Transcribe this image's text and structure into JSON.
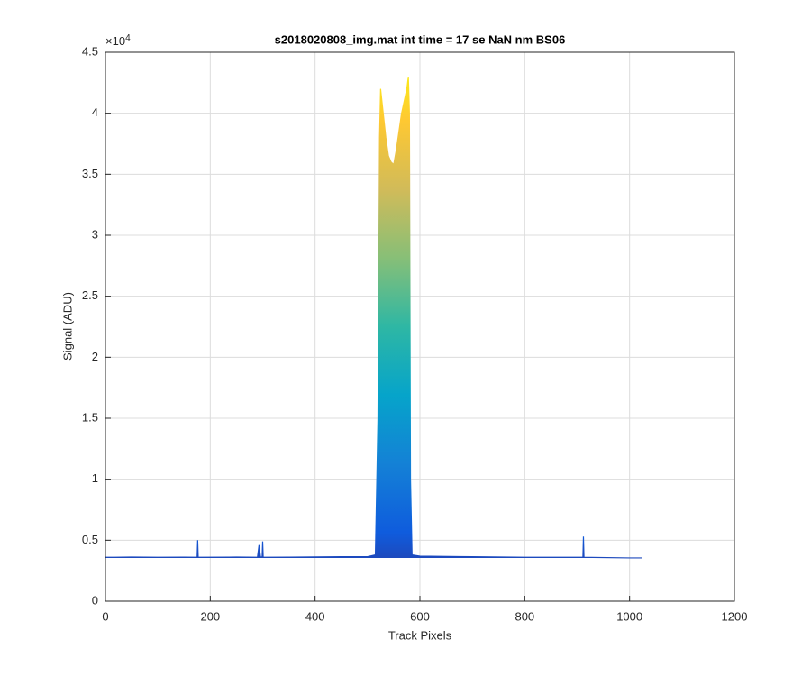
{
  "chart_data": {
    "type": "line",
    "title": "s2018020808_img.mat int time = 17 se  NaN nm BS06",
    "x_label": "Track Pixels",
    "y_label": "Signal (ADU)",
    "y_multiplier": {
      "base": "×10",
      "exponent": "4"
    },
    "x": [
      0,
      50,
      100,
      150,
      175,
      176,
      177,
      250,
      290,
      293,
      296,
      299,
      300,
      301,
      350,
      450,
      500,
      515,
      520,
      523,
      525,
      530,
      535,
      540,
      545,
      550,
      555,
      560,
      565,
      570,
      575,
      578,
      580,
      582,
      585,
      600,
      700,
      800,
      900,
      911,
      912,
      913,
      1000,
      1023
    ],
    "series": [
      {
        "name": "Signal",
        "values": [
          3600,
          3620,
          3600,
          3610,
          3600,
          5000,
          3600,
          3620,
          3600,
          4600,
          3600,
          3650,
          4900,
          3600,
          3610,
          3650,
          3650,
          3800,
          15000,
          38000,
          42000,
          40000,
          38000,
          36500,
          36000,
          35800,
          37000,
          38500,
          40000,
          41000,
          42000,
          43000,
          40000,
          10000,
          3800,
          3700,
          3650,
          3600,
          3600,
          3600,
          5300,
          3600,
          3550,
          3550
        ]
      }
    ],
    "colormap": [
      "#352a87",
      "#0f5cdd",
      "#1481d6",
      "#06a4ca",
      "#2eb7a4",
      "#87bf77",
      "#d1bb59",
      "#fec832",
      "#f9fb0e"
    ],
    "xlim": [
      0,
      1200
    ],
    "xticks": [
      0,
      200,
      400,
      600,
      800,
      1000,
      1200
    ],
    "ylim": [
      0,
      45000
    ],
    "yticks": [
      {
        "value": 0,
        "label": "0"
      },
      {
        "value": 5000,
        "label": "0.5"
      },
      {
        "value": 10000,
        "label": "1"
      },
      {
        "value": 15000,
        "label": "1.5"
      },
      {
        "value": 20000,
        "label": "2"
      },
      {
        "value": 25000,
        "label": "2.5"
      },
      {
        "value": 30000,
        "label": "3"
      },
      {
        "value": 35000,
        "label": "3.5"
      },
      {
        "value": 40000,
        "label": "4"
      },
      {
        "value": 45000,
        "label": "4.5"
      }
    ],
    "grid": true
  }
}
